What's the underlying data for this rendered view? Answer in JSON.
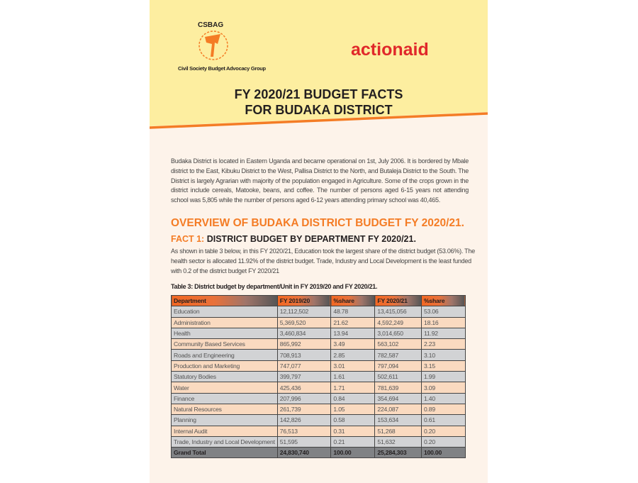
{
  "header": {
    "csbag_logo_text": "CSBAG",
    "csbag_tagline": "Civil Society Budget Advocacy Group",
    "actionaid_logo_text": "actionaid",
    "title_line1": "FY 2020/21 BUDGET FACTS",
    "title_line2": "FOR BUDAKA DISTRICT"
  },
  "intro": "Budaka District is located in Eastern Uganda and became operational on 1st, July 2006. It is bordered by Mbale district to the East, Kibuku District to the West, Pallisa District to the North, and Butaleja District to the South. The District is largely Agrarian with majority of the population engaged in Agriculture. Some of the crops grown in the district include cereals, Matooke, beans, and coffee.  The number of persons aged 6-15 years not attending school was 5,805 while the number of persons aged 6-12 years attending primary school was 40,465.",
  "overview_heading": "OVERVIEW OF BUDAKA DISTRICT BUDGET FY 2020/21.",
  "fact1": {
    "label": "FACT 1:",
    "heading": "DISTRICT BUDGET BY DEPARTMENT FY 2020/21.",
    "text": "As shown in table 3 below, in this FY 2020/21, Education took the largest share of the district budget (53.06%). The health sector is allocated 11.92% of the district budget. Trade, Industry and Local Development is the least funded with 0.2 of the district budget FY 2020/21"
  },
  "table": {
    "caption": "Table 3: District budget by department/Unit in FY 2019/20 and FY 2020/21.",
    "headers": [
      "Department",
      "FY 2019/20",
      "%share",
      "FY 2020/21",
      "%share"
    ],
    "rows": [
      [
        "Education",
        "12,112,502",
        "48.78",
        "13,415,056",
        "53.06"
      ],
      [
        "Administration",
        "5,369,520",
        "21.62",
        "4,592,249",
        "18.16"
      ],
      [
        "Health",
        "3,460,834",
        "13.94",
        "3,014,650",
        "11.92"
      ],
      [
        "Community Based Services",
        "865,992",
        "3.49",
        "563,102",
        "2.23"
      ],
      [
        "Roads and Engineering",
        "708,913",
        "2.85",
        "782,587",
        "3.10"
      ],
      [
        "Production and Marketing",
        "747,077",
        "3.01",
        "797,094",
        "3.15"
      ],
      [
        "Statutory Bodies",
        "399,797",
        "1.61",
        "502,611",
        "1.99"
      ],
      [
        "Water",
        "425,436",
        "1.71",
        "781,639",
        "3.09"
      ],
      [
        "Finance",
        "207,996",
        "0.84",
        "354,694",
        "1.40"
      ],
      [
        "Natural Resources",
        "261,739",
        "1.05",
        "224,087",
        "0.89"
      ],
      [
        "Planning",
        "142,826",
        "0.58",
        "153,634",
        "0.61"
      ],
      [
        "Internal Audit",
        "76,513",
        "0.31",
        "51,268",
        "0.20"
      ],
      [
        "Trade, Industry and Local Development",
        "51,595",
        "0.21",
        "51,632",
        "0.20"
      ]
    ],
    "total": [
      "Grand Total",
      "24,830,740",
      "100.00",
      "25,284,303",
      "100.00"
    ]
  },
  "colors": {
    "header_bg": "#fdeea0",
    "accent_orange": "#f47c25",
    "actionaid_red": "#e0282a",
    "page_bg": "#fdf3ea"
  }
}
